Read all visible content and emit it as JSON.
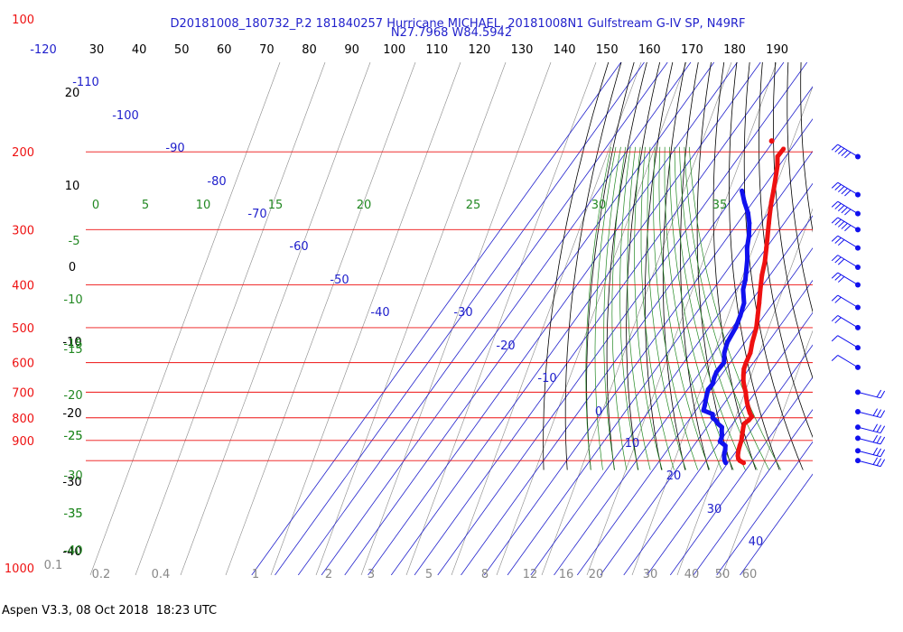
{
  "chart_data": {
    "type": "line",
    "title_line1": "D20181008_180732_P.2 181840257 Hurricane MICHAEL, 20181008N1 Gulfstream G-IV SP, N49RF",
    "title_line2": "N27.7968 W84.5942",
    "footer": "Aspen V3.3, 08 Oct 2018  18:23 UTC",
    "pressure_ticks": [
      "100",
      "200",
      "300",
      "400",
      "500",
      "600",
      "700",
      "800",
      "900",
      "1000"
    ],
    "pressure_values": [
      100,
      200,
      300,
      400,
      500,
      600,
      700,
      800,
      900,
      1000
    ],
    "top_temp_ticks": [
      "-120",
      "30",
      "40",
      "50",
      "60",
      "70",
      "80",
      "90",
      "100",
      "110",
      "120",
      "130",
      "140",
      "150",
      "160",
      "170",
      "180",
      "190"
    ],
    "isotherm_labels": [
      "-110",
      "-100",
      "-90",
      "-80",
      "-70",
      "-60",
      "-50",
      "-40",
      "-30",
      "-20",
      "-10",
      "0",
      "10",
      "20",
      "30",
      "40"
    ],
    "altitude_labels": [
      "20",
      "10",
      "0",
      "-10",
      "-20",
      "-30",
      "-40"
    ],
    "dry_adiabat_labels": [
      "-15",
      "-25",
      "-35"
    ],
    "mixing_ratio_labels": [
      "0.1",
      "0.2",
      "0.4",
      "1",
      "2",
      "3",
      "5",
      "8",
      "12",
      "16",
      "20",
      "30",
      "40",
      "50",
      "60"
    ],
    "theta_e_labels": [
      "0",
      "5",
      "10",
      "15",
      "20",
      "25",
      "30",
      "35",
      "-5",
      "-10",
      "-15",
      "-20",
      "-25",
      "-30",
      "-35",
      "-40"
    ],
    "series": [
      {
        "name": "Temperature",
        "color": "#ee1111",
        "pressure": [
          1012,
          1000,
          990,
          975,
          960,
          945,
          925,
          900,
          880,
          860,
          840,
          825,
          810,
          795,
          780,
          760,
          740,
          720,
          700,
          680,
          660,
          640,
          620,
          600,
          570,
          540,
          500,
          470,
          440,
          410,
          380,
          355,
          330,
          310,
          290,
          275,
          260,
          245,
          230,
          215,
          205,
          197
        ],
        "temperature": [
          26.8,
          24.4,
          23.2,
          22.1,
          21.3,
          20.6,
          19.8,
          18.9,
          17.8,
          16.7,
          15.6,
          14.9,
          15.8,
          16.0,
          14.0,
          11.8,
          9.7,
          7.7,
          5.8,
          3.5,
          1.3,
          -0.5,
          -2.2,
          -3.2,
          -4.4,
          -6.8,
          -9.6,
          -12.7,
          -16.0,
          -19.7,
          -23.5,
          -26.3,
          -30.0,
          -33.2,
          -36.6,
          -39.3,
          -42.0,
          -44.6,
          -47.5,
          -50.7,
          -53.5,
          -53.3
        ]
      },
      {
        "name": "Dewpoint",
        "color": "#1111ee",
        "pressure": [
          1012,
          1000,
          990,
          975,
          960,
          945,
          925,
          905,
          890,
          875,
          860,
          840,
          825,
          810,
          800,
          785,
          770,
          750,
          730,
          710,
          690,
          670,
          650,
          630,
          600,
          570,
          540,
          500,
          470,
          440,
          410,
          390,
          370,
          350,
          330,
          310,
          290,
          275,
          260,
          245
        ],
        "temperature": [
          19.1,
          17.9,
          17.2,
          16.2,
          15.4,
          14.8,
          13.6,
          10.0,
          9.6,
          8.9,
          7.7,
          6.4,
          3.6,
          1.5,
          -0.5,
          -1.6,
          -6.7,
          -7.7,
          -8.9,
          -10.1,
          -11.2,
          -11.0,
          -12.2,
          -13.0,
          -12.7,
          -15.6,
          -17.5,
          -18.5,
          -20.2,
          -22.5,
          -27.1,
          -29.1,
          -31.8,
          -34.7,
          -38.3,
          -41.2,
          -45.0,
          -48.7,
          -53.6,
          -58.2
        ]
      },
      {
        "name": "Temperature",
        "color": "#ee1111",
        "pressure": [
          189
        ],
        "temperature": [
          -60.8
        ]
      }
    ],
    "wind_barbs": [
      {
        "pressure": 205,
        "symbol": "5"
      },
      {
        "pressure": 250,
        "symbol": "5"
      },
      {
        "pressure": 276,
        "symbol": "5"
      },
      {
        "pressure": 300,
        "symbol": "5"
      },
      {
        "pressure": 330,
        "symbol": "3"
      },
      {
        "pressure": 365,
        "symbol": "3"
      },
      {
        "pressure": 400,
        "symbol": "3"
      },
      {
        "pressure": 450,
        "symbol": "2"
      },
      {
        "pressure": 500,
        "symbol": "2"
      },
      {
        "pressure": 555,
        "symbol": "1"
      },
      {
        "pressure": 615,
        "symbol": "1"
      },
      {
        "pressure": 700,
        "symbol": "2"
      },
      {
        "pressure": 775,
        "symbol": "3"
      },
      {
        "pressure": 840,
        "symbol": "3"
      },
      {
        "pressure": 890,
        "symbol": "3"
      },
      {
        "pressure": 950,
        "symbol": "3"
      },
      {
        "pressure": 1000,
        "symbol": "3"
      }
    ],
    "grid": true
  },
  "colors": {
    "isobar": "#ee1111",
    "isotherm": "#2020cc",
    "dry_adiabat": "#000000",
    "moist_adiabat": "#228822",
    "mixing_ratio": "#888888",
    "wind": "#1111ee"
  }
}
